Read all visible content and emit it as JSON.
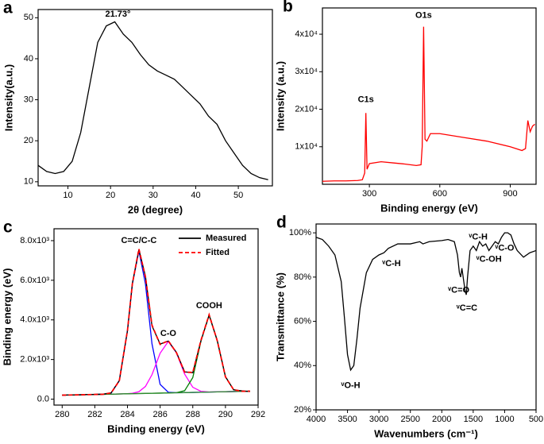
{
  "chart_data": [
    {
      "type": "line",
      "label": "a",
      "xlabel": "2θ (degree)",
      "ylabel": "Intensity(a.u.)",
      "x": [
        3,
        5,
        7,
        9,
        11,
        13,
        15,
        17,
        19,
        21,
        23,
        25,
        27,
        29,
        31,
        33,
        35,
        37,
        39,
        41,
        43,
        45,
        47,
        49,
        51,
        53,
        55,
        57
      ],
      "series": [
        {
          "color": "#000000",
          "values": [
            14,
            12.5,
            12,
            12.5,
            15,
            22,
            33,
            44,
            48,
            49,
            46,
            44,
            41,
            38.5,
            37,
            36,
            35,
            33,
            31,
            29,
            26,
            24,
            20,
            17,
            14,
            12,
            11,
            10.5
          ]
        }
      ],
      "xlim": [
        3,
        58
      ],
      "ylim": [
        9,
        52
      ],
      "xticks": [
        10,
        20,
        30,
        40,
        50
      ],
      "yticks": [
        10,
        20,
        30,
        40,
        50
      ],
      "annotations": [
        {
          "text": "21.73°",
          "x": 21.73,
          "y": 50.8
        }
      ]
    },
    {
      "type": "line",
      "label": "b",
      "xlabel": "Binding energy (eV)",
      "ylabel": "Intensity (a.u.)",
      "x": [
        100,
        150,
        200,
        250,
        270,
        280,
        285,
        290,
        300,
        350,
        400,
        450,
        500,
        520,
        525,
        531,
        537,
        545,
        560,
        600,
        700,
        800,
        900,
        950,
        965,
        975,
        985,
        995,
        1005
      ],
      "series": [
        {
          "color": "#ff0000",
          "values": [
            800,
            900,
            900,
            1000,
            1200,
            3000,
            19000,
            4000,
            5500,
            6000,
            5700,
            5400,
            5000,
            5200,
            10000,
            42000,
            12000,
            11500,
            13500,
            13500,
            12500,
            11500,
            10000,
            9000,
            9500,
            17000,
            14000,
            15500,
            16000
          ]
        }
      ],
      "xlim": [
        100,
        1010
      ],
      "ylim": [
        0,
        47000
      ],
      "xticks": [
        300,
        600,
        900
      ],
      "yticks": [
        {
          "value": 10000,
          "label": "1x10⁴"
        },
        {
          "value": 20000,
          "label": "2x10⁴"
        },
        {
          "value": 30000,
          "label": "3x10⁴"
        },
        {
          "value": 40000,
          "label": "4x10⁴"
        }
      ],
      "annotations": [
        {
          "text": "C1s",
          "x": 285,
          "y": 22500
        },
        {
          "text": "O1s",
          "x": 531,
          "y": 45000
        }
      ]
    },
    {
      "type": "line",
      "label": "c",
      "xlabel": "Binding energy (eV)",
      "ylabel": "Binding energy (eV)",
      "x": [
        280,
        281,
        282,
        282.5,
        283,
        283.5,
        284,
        284.3,
        284.7,
        285.1,
        285.5,
        286,
        286.5,
        287,
        287.5,
        288,
        288.5,
        289,
        289.5,
        290,
        290.5,
        291,
        291.5
      ],
      "series": [
        {
          "color": "#0000ff",
          "values": [
            200,
            217,
            235,
            245,
            312,
            927,
            3470,
            5805,
            7482,
            5819,
            2796,
            744,
            347,
            323,
            330,
            339,
            348,
            357,
            365,
            374,
            383,
            391,
            400
          ]
        },
        {
          "color": "#ff00ff",
          "values": [
            200,
            217,
            235,
            243,
            252,
            261,
            274,
            294,
            377,
            640,
            1233,
            2319,
            2913,
            2337,
            1267,
            600,
            392,
            361,
            365,
            374,
            383,
            391,
            400
          ]
        },
        {
          "color": "#008000",
          "values": [
            200,
            217,
            235,
            243,
            252,
            261,
            270,
            275,
            282,
            289,
            296,
            304,
            313,
            327,
            425,
            1088,
            2928,
            4257,
            2945,
            1123,
            478,
            396,
            400
          ]
        },
        {
          "color": "#2e8b2e",
          "values": [
            200,
            217,
            235,
            243,
            252,
            261,
            270,
            275,
            282,
            289,
            296,
            304,
            313,
            322,
            330,
            339,
            348,
            357,
            365,
            374,
            383,
            391,
            400
          ]
        },
        {
          "name": "Measured",
          "color": "#000000",
          "values": [
            200,
            220,
            238,
            250,
            320,
            940,
            3450,
            5850,
            7550,
            6200,
            3700,
            2780,
            2930,
            2360,
            1380,
            1330,
            2950,
            4230,
            2960,
            1140,
            470,
            420,
            380
          ]
        },
        {
          "name": "Fitted",
          "color": "#ff0000",
          "style": "dashed",
          "values": [
            200,
            217,
            235,
            245,
            312,
            927,
            3474,
            5824,
            7577,
            6170,
            3733,
            2759,
            2947,
            2343,
            1362,
            1349,
            2972,
            4261,
            2945,
            1123,
            478,
            396,
            400
          ]
        }
      ],
      "xlim": [
        279.5,
        292
      ],
      "ylim": [
        -300,
        8600
      ],
      "xticks": [
        280,
        282,
        284,
        286,
        288,
        290,
        292
      ],
      "yticks": [
        {
          "value": 0,
          "label": "0.0"
        },
        {
          "value": 2000,
          "label": "2.0x10³"
        },
        {
          "value": 4000,
          "label": "4.0x10³"
        },
        {
          "value": 6000,
          "label": "6.0x10³"
        },
        {
          "value": 8000,
          "label": "8.0x10³"
        }
      ],
      "legend": "upper right",
      "annotations": [
        {
          "text": "C=C/C-C",
          "x": 284.7,
          "y": 8000
        },
        {
          "text": "C-O",
          "x": 286.5,
          "y": 3300
        },
        {
          "text": "COOH",
          "x": 289,
          "y": 4700
        }
      ]
    },
    {
      "type": "line",
      "label": "d",
      "xlabel": "Wavenumbers (cm⁻¹)",
      "ylabel": "Transmittance (%)",
      "x": [
        4000,
        3900,
        3800,
        3700,
        3600,
        3550,
        3500,
        3450,
        3400,
        3350,
        3300,
        3200,
        3100,
        3000,
        2920,
        2850,
        2700,
        2500,
        2350,
        2300,
        2200,
        2000,
        1900,
        1800,
        1750,
        1720,
        1700,
        1680,
        1650,
        1630,
        1610,
        1590,
        1550,
        1500,
        1450,
        1400,
        1350,
        1300,
        1250,
        1200,
        1150,
        1100,
        1050,
        1000,
        950,
        900,
        850,
        800,
        700,
        600,
        500
      ],
      "series": [
        {
          "color": "#000000",
          "values": [
            98,
            97,
            94,
            90,
            78,
            62,
            45,
            38,
            40,
            52,
            66,
            82,
            88,
            90,
            91,
            93,
            95,
            95,
            96,
            95,
            96,
            96.5,
            97,
            96,
            90,
            82,
            80,
            84,
            78,
            74,
            72,
            80,
            92,
            94,
            92,
            96,
            94,
            95,
            92,
            94,
            96,
            95,
            98,
            100,
            100,
            99,
            95,
            92,
            89,
            91,
            92
          ]
        }
      ],
      "xlim": [
        4000,
        500
      ],
      "ylim": [
        20,
        104
      ],
      "xticks": [
        4000,
        3500,
        3000,
        2500,
        2000,
        1500,
        1000,
        500
      ],
      "yticks": [
        {
          "value": 20,
          "label": "20%"
        },
        {
          "value": 40,
          "label": "40%"
        },
        {
          "value": 60,
          "label": "60%"
        },
        {
          "value": 80,
          "label": "80%"
        },
        {
          "value": 100,
          "label": "100%"
        }
      ],
      "annotations": [
        {
          "text": "ᵛO-H",
          "x": 3450,
          "y": 31
        },
        {
          "text": "ᵛC-H",
          "x": 2800,
          "y": 86
        },
        {
          "text": "ᵛC=O",
          "x": 1730,
          "y": 74
        },
        {
          "text": "ᵛC=C",
          "x": 1600,
          "y": 66
        },
        {
          "text": "ᵛC-H",
          "x": 1420,
          "y": 98
        },
        {
          "text": "ᵛC-OH",
          "x": 1250,
          "y": 88
        },
        {
          "text": "ᵛC-O",
          "x": 1000,
          "y": 93
        }
      ]
    }
  ]
}
